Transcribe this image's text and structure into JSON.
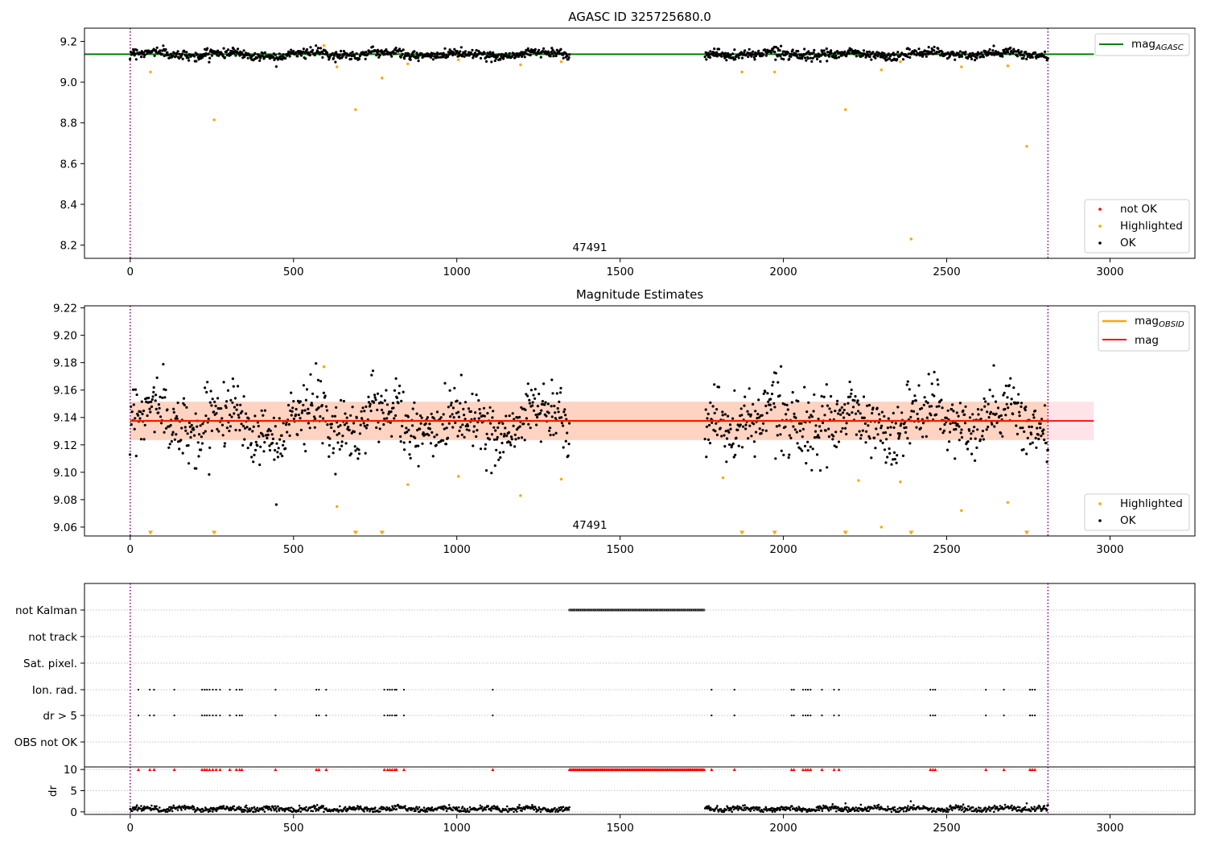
{
  "colors": {
    "ok": "#000000",
    "not_ok": "#ff0000",
    "highlighted": "#ffa500",
    "mag_agasc": "#008000",
    "mag": "#ff0000",
    "mag_obsid": "#ffa500",
    "band_mag": "#ffc0cb",
    "band_obsid": "#ffc8a8",
    "obs_marker": "#800080",
    "grid": "#b0b0b0"
  },
  "chart_data": [
    {
      "type": "scatter",
      "title": "AGASC ID 325725680.0",
      "xlim": [
        -140,
        3260
      ],
      "ylim": [
        8.135,
        9.265
      ],
      "xticks": [
        0,
        500,
        1000,
        1500,
        2000,
        2500,
        3000
      ],
      "yticks": [
        8.2,
        8.4,
        8.6,
        8.8,
        9.0,
        9.2
      ],
      "ytick_labels": [
        "8.2",
        "8.4",
        "8.6",
        "8.8",
        "9.0",
        "9.2"
      ],
      "annotation": "47491",
      "vlines": [
        0,
        2810
      ],
      "mag_agasc": 9.137,
      "legend_lines": [
        {
          "label": "mag",
          "sub": "AGASC",
          "color": "#008000"
        }
      ],
      "legend_points": [
        {
          "label": "not OK",
          "color": "#ff0000"
        },
        {
          "label": "Highlighted",
          "color": "#ffa500"
        },
        {
          "label": "OK",
          "color": "#000000"
        }
      ],
      "series": [
        {
          "name": "OK",
          "segments": [
            {
              "x0": 0,
              "x1": 1345,
              "n": 720
            },
            {
              "x0": 1760,
              "x1": 2810,
              "n": 560
            }
          ],
          "base": 9.137,
          "noise": 0.011,
          "wiggle": 0.018
        },
        {
          "name": "Highlighted",
          "x": [
            62,
            257,
            593,
            633,
            690,
            771,
            850,
            1005,
            1195,
            1320,
            1873,
            1973,
            2190,
            2300,
            2358,
            2391,
            2545,
            2687,
            2745
          ],
          "y": [
            9.05,
            8.815,
            9.18,
            9.075,
            8.865,
            9.02,
            9.09,
            9.11,
            9.085,
            9.1,
            9.05,
            9.05,
            8.865,
            9.06,
            9.1,
            8.23,
            9.075,
            9.08,
            8.685
          ]
        }
      ]
    },
    {
      "type": "scatter",
      "title": "Magnitude Estimates",
      "xlim": [
        -140,
        3260
      ],
      "ylim": [
        9.0535,
        9.2215
      ],
      "xticks": [
        0,
        500,
        1000,
        1500,
        2000,
        2500,
        3000
      ],
      "yticks": [
        9.06,
        9.08,
        9.1,
        9.12,
        9.14,
        9.16,
        9.18,
        9.2,
        9.22
      ],
      "ytick_labels": [
        "9.06",
        "9.08",
        "9.10",
        "9.12",
        "9.14",
        "9.16",
        "9.18",
        "9.20",
        "9.22"
      ],
      "annotation": "47491",
      "vlines": [
        0,
        2810
      ],
      "mag": 9.1375,
      "mag_obsid": 9.1375,
      "mag_band": [
        9.1235,
        9.1515
      ],
      "mag_obsid_band": [
        9.1235,
        9.1515
      ],
      "legend_lines": [
        {
          "label": "mag",
          "sub": "OBSID",
          "color": "#ffa500"
        },
        {
          "label": "mag",
          "sub": "",
          "color": "#ff0000"
        }
      ],
      "legend_points": [
        {
          "label": "Highlighted",
          "color": "#ffa500"
        },
        {
          "label": "OK",
          "color": "#000000"
        }
      ],
      "series": [
        {
          "name": "OK",
          "segments": [
            {
              "x0": 0,
              "x1": 1345,
              "n": 720
            },
            {
              "x0": 1760,
              "x1": 2810,
              "n": 560
            }
          ],
          "base": 9.137,
          "noise": 0.011,
          "wiggle": 0.018
        },
        {
          "name": "Highlighted",
          "x": [
            593,
            633,
            850,
            1005,
            1195,
            1320,
            1815,
            2230,
            2300,
            2358,
            2545,
            2687
          ],
          "y": [
            9.177,
            9.075,
            9.091,
            9.097,
            9.083,
            9.095,
            9.096,
            9.094,
            9.06,
            9.093,
            9.072,
            9.078
          ]
        },
        {
          "name": "Highlighted (below range)",
          "x": [
            62,
            257,
            690,
            771,
            1873,
            1973,
            2190,
            2391,
            2745
          ]
        }
      ]
    },
    {
      "type": "scatter",
      "title": "",
      "xlim": [
        -140,
        3260
      ],
      "categories": [
        "not Kalman",
        "not track",
        "Sat. pixel.",
        "Ion. rad.",
        "dr > 5",
        "OBS not OK"
      ],
      "vlines": [
        0,
        2810
      ],
      "flag_not_kalman": [
        [
          1345,
          1760
        ]
      ],
      "flag_ion_rad": [
        25,
        60,
        73,
        135,
        220,
        228,
        235,
        243,
        253,
        263,
        275,
        305,
        325,
        335,
        342,
        445,
        570,
        578,
        600,
        778,
        788,
        795,
        802,
        810,
        815,
        838,
        1110,
        1780,
        1850,
        2025,
        2032,
        2060,
        2068,
        2075,
        2083,
        2118,
        2155,
        2170,
        2450,
        2458,
        2465,
        2620,
        2675,
        2755,
        2762,
        2770
      ],
      "flag_dr5": [
        25,
        60,
        73,
        135,
        220,
        228,
        235,
        243,
        253,
        263,
        275,
        305,
        325,
        335,
        342,
        445,
        570,
        578,
        600,
        778,
        788,
        795,
        802,
        810,
        815,
        838,
        1110,
        1780,
        1850,
        2025,
        2032,
        2060,
        2068,
        2075,
        2083,
        2118,
        2155,
        2170,
        2450,
        2458,
        2465,
        2620,
        2675,
        2755,
        2762,
        2770
      ],
      "dr": {
        "ylabel": "dr",
        "yticks": [
          0,
          5,
          10
        ],
        "ylim": [
          -0.6,
          10.6
        ],
        "clip": 10,
        "base": 0.7,
        "noise": 0.35,
        "outliers_x": [
          2190,
          2390,
          2745
        ],
        "outliers_y": [
          2.0,
          2.5,
          2.0
        ]
      }
    }
  ]
}
